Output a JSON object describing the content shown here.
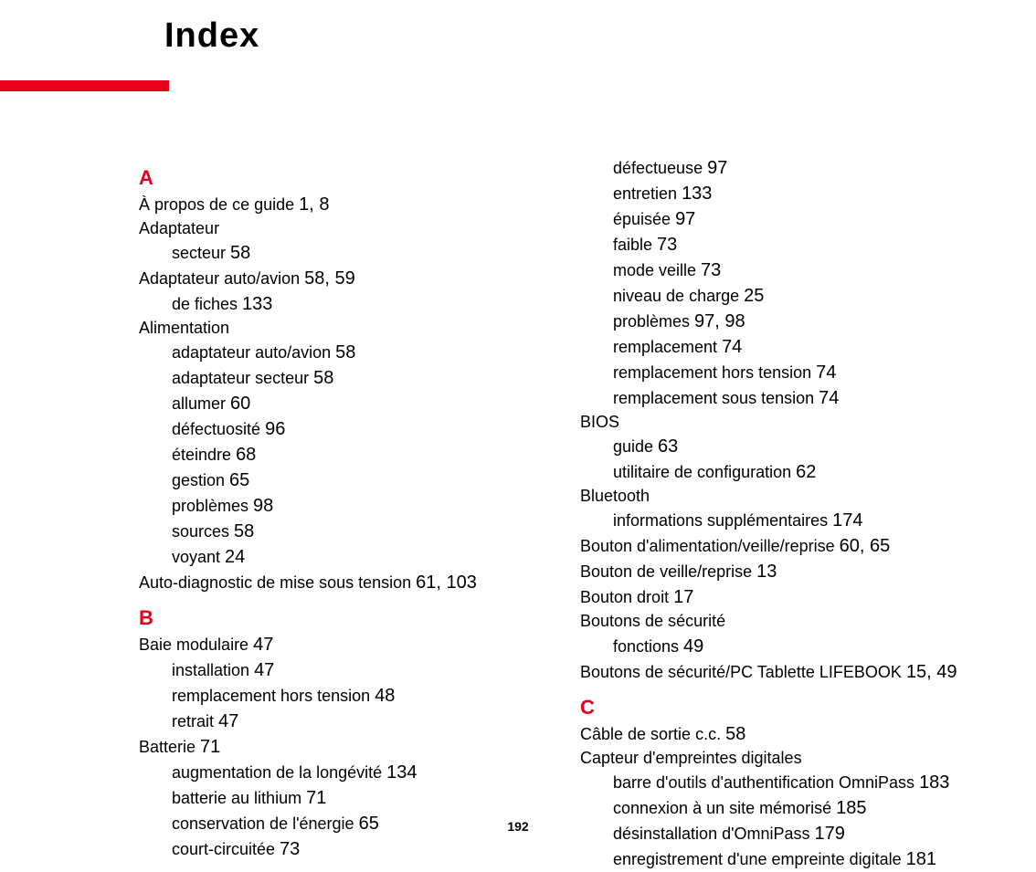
{
  "title": "Index",
  "page_number": "192",
  "colors": {
    "accent": "#e6001a",
    "text": "#000000",
    "background": "#ffffff"
  },
  "typography": {
    "title_fontsize": 38,
    "section_letter_fontsize": 22,
    "entry_fontsize": 18,
    "pages_fontsize": 20,
    "page_number_fontsize": 14,
    "font_family": "Arial, Helvetica, sans-serif"
  },
  "layout": {
    "red_bar_width": 185,
    "red_bar_height": 12,
    "indent": 36
  },
  "left": {
    "A": {
      "letter": "A",
      "e1_text": "À propos de ce guide ",
      "e1_pages": "1, 8",
      "e2_text": "Adaptateur",
      "e3_text": "secteur ",
      "e3_pages": "58",
      "e4_text": "Adaptateur auto/avion ",
      "e4_pages": "58, 59",
      "e5_text": "de fiches ",
      "e5_pages": "133",
      "e6_text": "Alimentation",
      "e7_text": "adaptateur auto/avion ",
      "e7_pages": "58",
      "e8_text": "adaptateur secteur ",
      "e8_pages": "58",
      "e9_text": "allumer ",
      "e9_pages": "60",
      "e10_text": "défectuosité ",
      "e10_pages": "96",
      "e11_text": "éteindre ",
      "e11_pages": "68",
      "e12_text": "gestion ",
      "e12_pages": "65",
      "e13_text": "problèmes ",
      "e13_pages": "98",
      "e14_text": "sources ",
      "e14_pages": "58",
      "e15_text": "voyant ",
      "e15_pages": "24",
      "e16_text": "Auto-diagnostic de mise sous tension ",
      "e16_pages": "61, 103"
    },
    "B": {
      "letter": "B",
      "e1_text": "Baie modulaire ",
      "e1_pages": "47",
      "e2_text": "installation ",
      "e2_pages": "47",
      "e3_text": "remplacement hors tension ",
      "e3_pages": "48",
      "e4_text": "retrait ",
      "e4_pages": "47",
      "e5_text": "Batterie ",
      "e5_pages": "71",
      "e6_text": "augmentation de la longévité ",
      "e6_pages": "134",
      "e7_text": "batterie au lithium ",
      "e7_pages": "71",
      "e8_text": "conservation de l'énergie ",
      "e8_pages": "65",
      "e9_text": "court-circuitée ",
      "e9_pages": "73"
    }
  },
  "right": {
    "batt_cont": {
      "e1_text": "défectueuse ",
      "e1_pages": "97",
      "e2_text": "entretien ",
      "e2_pages": "133",
      "e3_text": "épuisée ",
      "e3_pages": "97",
      "e4_text": "faible ",
      "e4_pages": "73",
      "e5_text": "mode veille ",
      "e5_pages": "73",
      "e6_text": "niveau de charge ",
      "e6_pages": "25",
      "e7_text": "problèmes ",
      "e7_pages": "97, 98",
      "e8_text": "remplacement ",
      "e8_pages": "74",
      "e9_text": "remplacement hors tension ",
      "e9_pages": "74",
      "e10_text": "remplacement sous tension ",
      "e10_pages": "74"
    },
    "bios": {
      "e1_text": "BIOS",
      "e2_text": "guide ",
      "e2_pages": "63",
      "e3_text": "utilitaire de configuration ",
      "e3_pages": "62"
    },
    "bluetooth": {
      "e1_text": "Bluetooth",
      "e2_text": "informations supplémentaires ",
      "e2_pages": "174"
    },
    "bouton": {
      "e1_text": "Bouton d'alimentation/veille/reprise ",
      "e1_pages": "60, 65",
      "e2_text": "Bouton de veille/reprise ",
      "e2_pages": "13",
      "e3_text": "Bouton droit ",
      "e3_pages": "17",
      "e4_text": "Boutons de sécurité",
      "e5_text": "fonctions ",
      "e5_pages": "49",
      "e6_text": "Boutons de sécurité/PC Tablette LIFEBOOK ",
      "e6_pages": "15, 49"
    },
    "C": {
      "letter": "C",
      "e1_text": "Câble de sortie c.c. ",
      "e1_pages": "58",
      "e2_text": "Capteur d'empreintes digitales",
      "e3_text": "barre d'outils d'authentification OmniPass ",
      "e3_pages": "183",
      "e4_text": "connexion à un site mémorisé ",
      "e4_pages": "185",
      "e5_text": "désinstallation d'OmniPass ",
      "e5_pages": "179",
      "e6_text": "enregistrement d'une empreinte digitale ",
      "e6_pages": "181"
    }
  }
}
